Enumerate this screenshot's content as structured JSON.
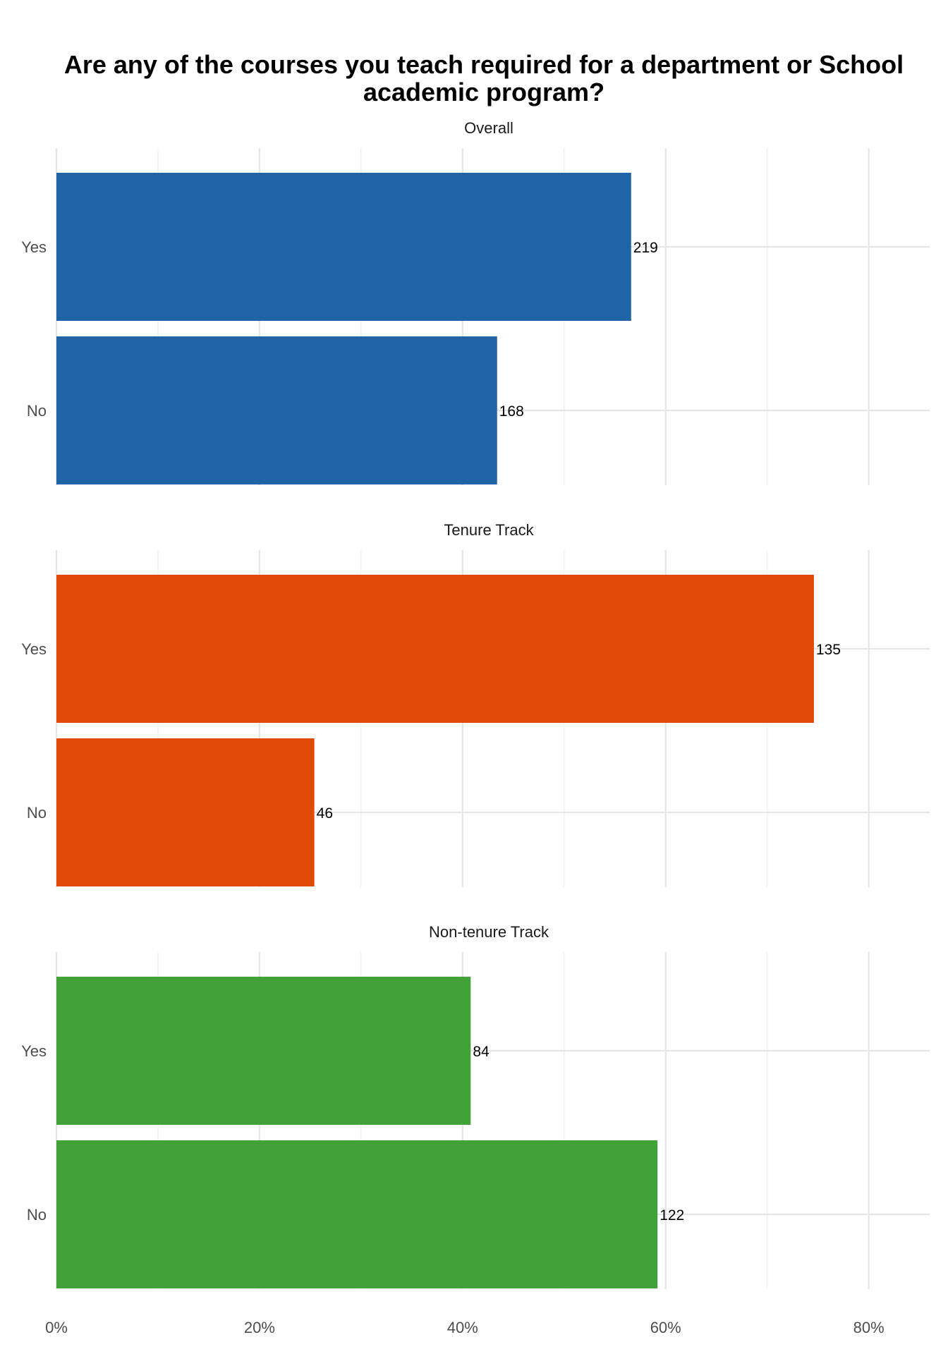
{
  "chart_data": {
    "type": "bar",
    "orientation": "horizontal",
    "title_lines": [
      "Are any of the courses you teach required for a department or School",
      "academic program?"
    ],
    "xlabel": "",
    "ylabel": "",
    "x_ticks": [
      "0%",
      "20%",
      "40%",
      "60%",
      "80%"
    ],
    "x_tick_values": [
      0,
      20,
      40,
      60,
      80
    ],
    "xlim": [
      0,
      86
    ],
    "grid": true,
    "legend": "none",
    "categories": [
      "Yes",
      "No"
    ],
    "panels": [
      {
        "name": "Overall",
        "color": "#1f64a6",
        "bars": [
          {
            "category": "Yes",
            "percent": 56.6,
            "label": "219"
          },
          {
            "category": "No",
            "percent": 43.4,
            "label": "168"
          }
        ]
      },
      {
        "name": "Tenure Track",
        "color": "#df4a08",
        "bars": [
          {
            "category": "Yes",
            "percent": 74.6,
            "label": "135"
          },
          {
            "category": "No",
            "percent": 25.4,
            "label": "46"
          }
        ]
      },
      {
        "name": "Non-tenure Track",
        "color": "#41a23a",
        "bars": [
          {
            "category": "Yes",
            "percent": 40.8,
            "label": "84"
          },
          {
            "category": "No",
            "percent": 59.2,
            "label": "122"
          }
        ]
      }
    ]
  }
}
